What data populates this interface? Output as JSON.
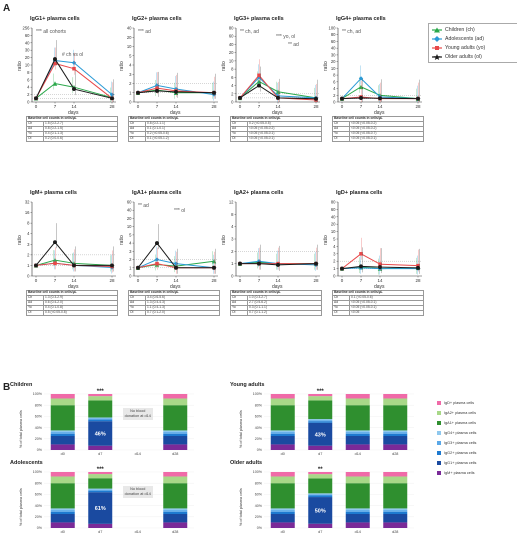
{
  "panel_labels": {
    "a": "A",
    "b": "B"
  },
  "series_legend": [
    {
      "name": "Children (ch)",
      "color": "#2aa84a",
      "marker": "triangle"
    },
    {
      "name": "Adolescents (ad)",
      "color": "#2a9ad6",
      "marker": "diamond"
    },
    {
      "name": "Young adults (yo)",
      "color": "#e8484a",
      "marker": "square"
    },
    {
      "name": "Older adults (ol)",
      "color": "#1a1a1a",
      "marker": "star"
    }
  ],
  "days_label": "days",
  "ratio_label": "ratio",
  "table_header": "Baseline cell counts in cells/µL",
  "row_keys": [
    "Ch",
    "Ad",
    "Yo",
    "Ol"
  ],
  "chart_data": [
    {
      "type": "line",
      "title": "IgG1+ plasma cells",
      "annotation": "*** all cohorts",
      "annotation2": "# ch vs ol",
      "x": [
        0,
        7,
        14,
        28
      ],
      "ylabel": "ratio",
      "xlabel": "days",
      "yticks": [
        0,
        2,
        4,
        6,
        8,
        10,
        20,
        30,
        40,
        60,
        256
      ],
      "ylim": [
        0,
        256
      ],
      "series": [
        {
          "name": "Children (ch)",
          "values": [
            1,
            5,
            4,
            1.2
          ]
        },
        {
          "name": "Adolescents (ad)",
          "values": [
            1,
            16,
            13,
            2
          ]
        },
        {
          "name": "Young adults (yo)",
          "values": [
            1,
            12,
            9,
            1
          ]
        },
        {
          "name": "Older adults (ol)",
          "values": [
            1,
            18,
            3.5,
            1
          ]
        }
      ],
      "table": [
        "1.5 (0.2-2.7)",
        "0.8 (0.2-1.5)",
        "0.4 (0.1-1.3)",
        "0.2 (0.0-0.6)"
      ]
    },
    {
      "type": "line",
      "title": "IgG2+ plasma cells",
      "annotation": "*** ad",
      "x": [
        0,
        7,
        14,
        28
      ],
      "ylabel": "ratio",
      "xlabel": "days",
      "yticks": [
        0,
        1,
        2,
        3,
        4,
        5,
        10,
        20,
        40
      ],
      "ylim": [
        0,
        40
      ],
      "series": [
        {
          "name": "Children (ch)",
          "values": [
            1,
            1.3,
            1,
            1
          ]
        },
        {
          "name": "Adolescents (ad)",
          "values": [
            1,
            1.8,
            1.4,
            0.8
          ]
        },
        {
          "name": "Young adults (yo)",
          "values": [
            1,
            1.5,
            1.2,
            1
          ]
        },
        {
          "name": "Older adults (ol)",
          "values": [
            1,
            1.2,
            1.1,
            1
          ]
        }
      ],
      "table": [
        "0.8 (0.2-1.1)",
        "0.1 (0.1-0.1)",
        "0.2 (<0.05-0.6)",
        "0.1 (<0.05-1.2)"
      ]
    },
    {
      "type": "line",
      "title": "IgG3+ plasma cells",
      "annotation": "** ch, ad",
      "annotation2": "*** yo, ol",
      "annotation3": "** ad",
      "x": [
        0,
        7,
        14,
        28
      ],
      "ylabel": "ratio",
      "xlabel": "days",
      "yticks": [
        0,
        2,
        4,
        6,
        8,
        10,
        20,
        40,
        60,
        80
      ],
      "ylim": [
        0,
        80
      ],
      "series": [
        {
          "name": "Children (ch)",
          "values": [
            1,
            5,
            2.5,
            1
          ]
        },
        {
          "name": "Adolescents (ad)",
          "values": [
            1,
            6,
            1.5,
            1
          ]
        },
        {
          "name": "Young adults (yo)",
          "values": [
            1,
            6.5,
            1,
            0.5
          ]
        },
        {
          "name": "Older adults (ol)",
          "values": [
            1,
            4,
            1,
            0.8
          ]
        }
      ],
      "table": [
        "0.2 (<0.05-0.5)",
        "<0.05 (<0.05-0.2)",
        "<0.05 (<0.05-0.1)",
        "<0.05 (<0.05-0.1)"
      ]
    },
    {
      "type": "line",
      "title": "IgG4+ plasma cells",
      "annotation": "** ch, ad",
      "x": [
        0,
        7,
        14,
        28
      ],
      "ylabel": "ratio",
      "xlabel": "days",
      "yticks": [
        0,
        2,
        4,
        6,
        8,
        10,
        20,
        30,
        40,
        60,
        80,
        100
      ],
      "ylim": [
        0,
        100
      ],
      "series": [
        {
          "name": "Children (ch)",
          "values": [
            1,
            4.5,
            2,
            1
          ]
        },
        {
          "name": "Adolescents (ad)",
          "values": [
            1,
            7,
            1.5,
            1
          ]
        },
        {
          "name": "Young adults (yo)",
          "values": [
            1,
            1.5,
            1,
            1
          ]
        },
        {
          "name": "Older adults (ol)",
          "values": [
            1,
            1.2,
            1.1,
            1
          ]
        }
      ],
      "table": [
        "<0.05 (<0.05-0.2)",
        "<0.05 (<0.05-0.2)",
        "<0.05 (<0.05-0.7)",
        "<0.05 (<0.05-0.1)"
      ]
    },
    {
      "type": "line",
      "title": "IgM+ plasma cells",
      "x": [
        0,
        7,
        14,
        28
      ],
      "ylabel": "ratio",
      "xlabel": "days",
      "yticks": [
        0,
        1,
        2,
        3,
        4,
        8,
        16,
        32
      ],
      "ylim": [
        0,
        32
      ],
      "series": [
        {
          "name": "Children (ch)",
          "values": [
            1,
            1.5,
            1.2,
            1
          ]
        },
        {
          "name": "Adolescents (ad)",
          "values": [
            1,
            1.2,
            1,
            0.8
          ]
        },
        {
          "name": "Young adults (yo)",
          "values": [
            1,
            1.2,
            1,
            0.9
          ]
        },
        {
          "name": "Older adults (ol)",
          "values": [
            1,
            3.2,
            1,
            1
          ]
        }
      ],
      "table": [
        "1.3 (0.3-2.9)",
        "0.6 (0.4-2.0)",
        "0.4 (0.1-0.8)",
        "0.5 (<0.05-0.8)"
      ]
    },
    {
      "type": "line",
      "title": "IgA1+ plasma cells",
      "annotation": "** ad",
      "annotation2": "*** ol",
      "x": [
        0,
        7,
        14,
        28
      ],
      "ylabel": "ratio",
      "xlabel": "days",
      "yticks": [
        0,
        1,
        2,
        3,
        4,
        5,
        10,
        20,
        40,
        60
      ],
      "ylim": [
        0,
        60
      ],
      "series": [
        {
          "name": "Children (ch)",
          "values": [
            1,
            1.4,
            1.2,
            1.8
          ]
        },
        {
          "name": "Adolescents (ad)",
          "values": [
            1,
            2,
            1.5,
            1
          ]
        },
        {
          "name": "Young adults (yo)",
          "values": [
            1,
            1.5,
            1,
            1
          ]
        },
        {
          "name": "Older adults (ol)",
          "values": [
            1,
            4,
            1,
            1
          ]
        }
      ],
      "table": [
        "3.4 (0.6-5.6)",
        "1.3 (0.4-4.3)",
        "1.1 (0.4-1.3)",
        "0.7 (0.1-2.0)"
      ]
    },
    {
      "type": "line",
      "title": "IgA2+ plasma cells",
      "x": [
        0,
        7,
        14,
        28
      ],
      "ylabel": "ratio",
      "xlabel": "days",
      "yticks": [
        0,
        1,
        2,
        3,
        4,
        8,
        12
      ],
      "ylim": [
        0,
        12
      ],
      "series": [
        {
          "name": "Children (ch)",
          "values": [
            1,
            1.1,
            1,
            1
          ]
        },
        {
          "name": "Adolescents (ad)",
          "values": [
            1,
            1.2,
            1,
            0.9
          ]
        },
        {
          "name": "Young adults (yo)",
          "values": [
            1,
            1,
            1,
            1
          ]
        },
        {
          "name": "Older adults (ol)",
          "values": [
            1,
            1,
            0.9,
            1
          ]
        }
      ],
      "table": [
        "1.0 (0.3-2.7)",
        "2.7 (0.5-6.2)",
        "0.3 (0.1-1.1)",
        "0.7 (0.1-1.2)"
      ]
    },
    {
      "type": "line",
      "title": "IgD+ plasma cells",
      "x": [
        0,
        7,
        14,
        28
      ],
      "ylabel": "ratio",
      "xlabel": "days",
      "yticks": [
        0,
        1,
        2,
        3,
        4,
        5,
        10,
        20,
        40,
        60,
        80
      ],
      "ylim": [
        0,
        80
      ],
      "series": [
        {
          "name": "Children (ch)",
          "values": [
            1,
            1.2,
            1,
            1.1
          ]
        },
        {
          "name": "Adolescents (ad)",
          "values": [
            1,
            1.1,
            1,
            1
          ]
        },
        {
          "name": "Young adults (yo)",
          "values": [
            1,
            3,
            1.6,
            1.4
          ]
        },
        {
          "name": "Older adults (ol)",
          "values": [
            1,
            1.3,
            1.2,
            1.1
          ]
        }
      ],
      "table": [
        "0.1 (<0.05-0.6)",
        "<0.05 (<0.05-0.1)",
        "<0.05 (<0.05-0.1)",
        "<0.05"
      ]
    }
  ],
  "stacked": {
    "legend": [
      "IgD+ plasma cells",
      "IgA2+ plasma cells",
      "IgA1+ plasma cells",
      "IgG4+ plasma cells",
      "IgG3+ plasma cells",
      "IgG2+ plasma cells",
      "IgG1+ plasma cells",
      "IgM+ plasma cells"
    ],
    "legend_colors": [
      "#f06aa8",
      "#a8d888",
      "#2f8f2f",
      "#8fc8ee",
      "#5aa8e8",
      "#1e7ad0",
      "#1a4aa0",
      "#7a2a98"
    ],
    "ylabel": "% of total plasma cells",
    "yticks": [
      "0%",
      "20%",
      "40%",
      "60%",
      "80%",
      "100%"
    ],
    "categories": [
      "d0",
      "d7",
      "d14",
      "d28"
    ],
    "panels": [
      {
        "title": "Children",
        "sig": "***",
        "d7_pct": "46%",
        "note": "No blood donation at d14",
        "missing": [
          2
        ]
      },
      {
        "title": "Young adults",
        "sig": "***",
        "d7_pct": "43%",
        "note": "",
        "missing": []
      },
      {
        "title": "Adolescents",
        "sig": "***",
        "d7_pct": "61%",
        "note": "No blood donation at d14",
        "missing": [
          2
        ]
      },
      {
        "title": "Older adults",
        "sig": "**",
        "d7_pct": "50%",
        "note": "",
        "missing": []
      }
    ]
  }
}
